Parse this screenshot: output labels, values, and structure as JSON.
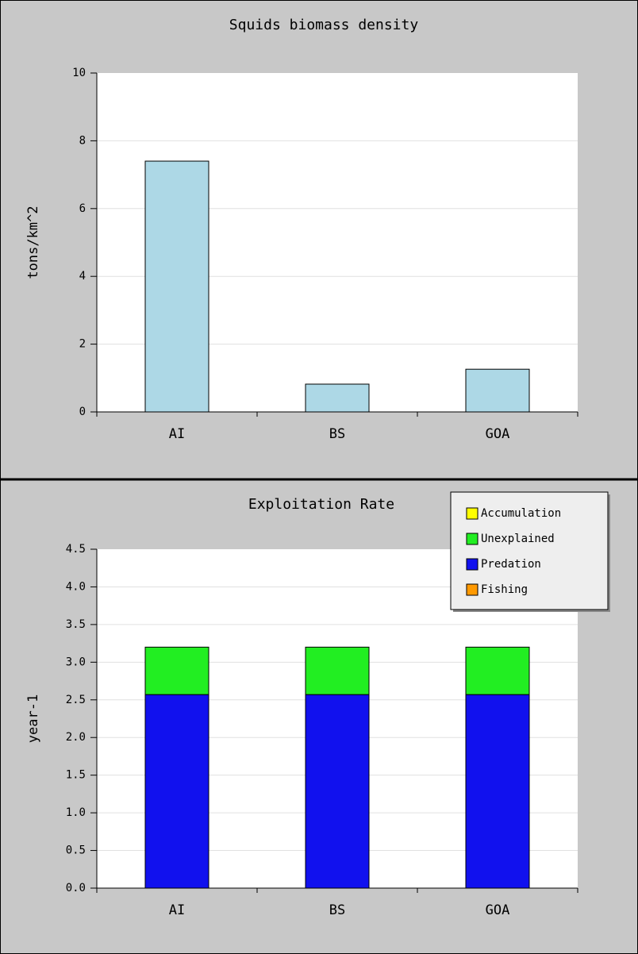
{
  "chart_data": [
    {
      "type": "bar",
      "title": "Squids biomass density",
      "y_label": "tons/km^2",
      "categories": [
        "AI",
        "BS",
        "GOA"
      ],
      "values": [
        7.4,
        0.82,
        1.26
      ],
      "color": "#add8e6",
      "ylim": [
        0,
        10
      ],
      "yticks": [
        0,
        2,
        4,
        6,
        8,
        10
      ],
      "grid": true
    },
    {
      "type": "stacked-bar",
      "title": "Exploitation Rate",
      "y_label": "year-1",
      "categories": [
        "AI",
        "BS",
        "GOA"
      ],
      "series": [
        {
          "name": "Accumulation",
          "color": "#ffff00",
          "values": [
            0,
            0,
            0
          ]
        },
        {
          "name": "Unexplained",
          "color": "#22ee22",
          "values": [
            0.63,
            0.63,
            0.63
          ]
        },
        {
          "name": "Predation",
          "color": "#1111ee",
          "values": [
            2.57,
            2.57,
            2.57
          ]
        },
        {
          "name": "Fishing",
          "color": "#ff9900",
          "values": [
            0,
            0,
            0
          ]
        }
      ],
      "ylim": [
        0,
        4.5
      ],
      "yticks": [
        {
          "value": 0,
          "label": "0.0"
        },
        0.5,
        {
          "value": 1,
          "label": "1.0"
        },
        1.5,
        {
          "value": 2,
          "label": "2.0"
        },
        2.5,
        {
          "value": 3,
          "label": "3.0"
        },
        3.5,
        {
          "value": 4,
          "label": "4.0"
        },
        4.5
      ],
      "grid": true,
      "legend": "top-right"
    }
  ]
}
